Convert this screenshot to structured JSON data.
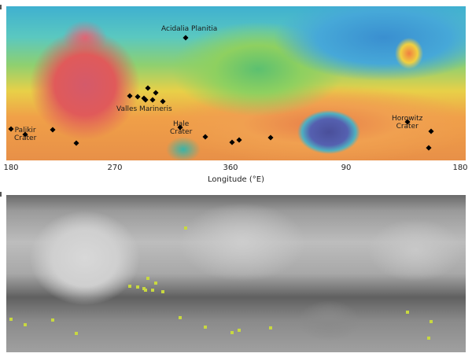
{
  "top_map": {
    "type": "topographic-elevation-map",
    "labels": {
      "acidalia": "Acidalia Planitia",
      "valles": "Valles Marineris",
      "hale": "Hale\nCrater",
      "palikir": "Palikir\nCrater",
      "horowitz": "Horowitz\nCrater"
    },
    "marker_color": "#000000"
  },
  "axis": {
    "ticks": [
      "180",
      "270",
      "360",
      "90",
      "180"
    ],
    "xlabel": "Longitude (°E)"
  },
  "bottom_map": {
    "type": "grayscale-shaded-relief-map",
    "marker_color": "#c8d840"
  }
}
